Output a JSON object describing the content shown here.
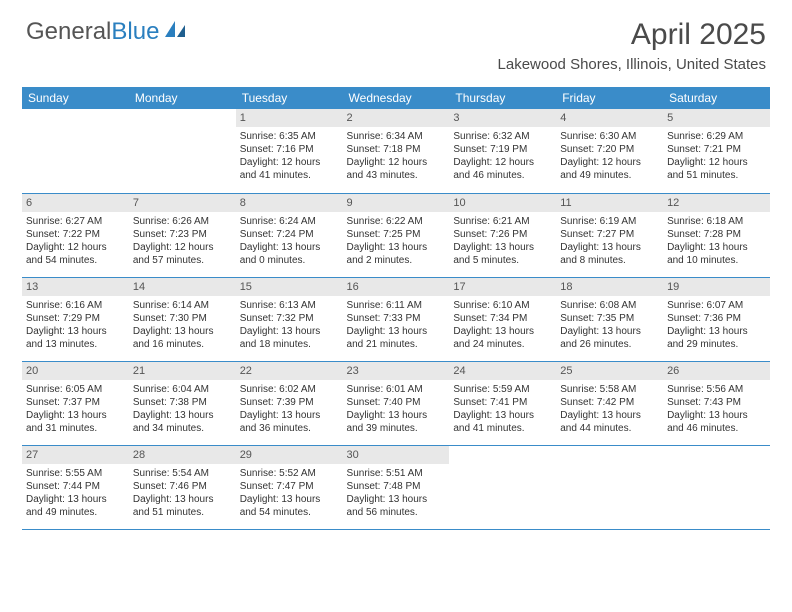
{
  "logo": {
    "part1": "General",
    "part2": "Blue"
  },
  "title": "April 2025",
  "location": "Lakewood Shores, Illinois, United States",
  "colors": {
    "header_bg": "#3a8cc9",
    "header_text": "#ffffff",
    "daynum_bg": "#e8e8e8",
    "border": "#3a8cc9",
    "logo_gray": "#555555",
    "logo_blue": "#2a7fbf"
  },
  "weekdays": [
    "Sunday",
    "Monday",
    "Tuesday",
    "Wednesday",
    "Thursday",
    "Friday",
    "Saturday"
  ],
  "weeks": [
    [
      {
        "n": "",
        "sr": "",
        "ss": "",
        "dl": ""
      },
      {
        "n": "",
        "sr": "",
        "ss": "",
        "dl": ""
      },
      {
        "n": "1",
        "sr": "Sunrise: 6:35 AM",
        "ss": "Sunset: 7:16 PM",
        "dl": "Daylight: 12 hours and 41 minutes."
      },
      {
        "n": "2",
        "sr": "Sunrise: 6:34 AM",
        "ss": "Sunset: 7:18 PM",
        "dl": "Daylight: 12 hours and 43 minutes."
      },
      {
        "n": "3",
        "sr": "Sunrise: 6:32 AM",
        "ss": "Sunset: 7:19 PM",
        "dl": "Daylight: 12 hours and 46 minutes."
      },
      {
        "n": "4",
        "sr": "Sunrise: 6:30 AM",
        "ss": "Sunset: 7:20 PM",
        "dl": "Daylight: 12 hours and 49 minutes."
      },
      {
        "n": "5",
        "sr": "Sunrise: 6:29 AM",
        "ss": "Sunset: 7:21 PM",
        "dl": "Daylight: 12 hours and 51 minutes."
      }
    ],
    [
      {
        "n": "6",
        "sr": "Sunrise: 6:27 AM",
        "ss": "Sunset: 7:22 PM",
        "dl": "Daylight: 12 hours and 54 minutes."
      },
      {
        "n": "7",
        "sr": "Sunrise: 6:26 AM",
        "ss": "Sunset: 7:23 PM",
        "dl": "Daylight: 12 hours and 57 minutes."
      },
      {
        "n": "8",
        "sr": "Sunrise: 6:24 AM",
        "ss": "Sunset: 7:24 PM",
        "dl": "Daylight: 13 hours and 0 minutes."
      },
      {
        "n": "9",
        "sr": "Sunrise: 6:22 AM",
        "ss": "Sunset: 7:25 PM",
        "dl": "Daylight: 13 hours and 2 minutes."
      },
      {
        "n": "10",
        "sr": "Sunrise: 6:21 AM",
        "ss": "Sunset: 7:26 PM",
        "dl": "Daylight: 13 hours and 5 minutes."
      },
      {
        "n": "11",
        "sr": "Sunrise: 6:19 AM",
        "ss": "Sunset: 7:27 PM",
        "dl": "Daylight: 13 hours and 8 minutes."
      },
      {
        "n": "12",
        "sr": "Sunrise: 6:18 AM",
        "ss": "Sunset: 7:28 PM",
        "dl": "Daylight: 13 hours and 10 minutes."
      }
    ],
    [
      {
        "n": "13",
        "sr": "Sunrise: 6:16 AM",
        "ss": "Sunset: 7:29 PM",
        "dl": "Daylight: 13 hours and 13 minutes."
      },
      {
        "n": "14",
        "sr": "Sunrise: 6:14 AM",
        "ss": "Sunset: 7:30 PM",
        "dl": "Daylight: 13 hours and 16 minutes."
      },
      {
        "n": "15",
        "sr": "Sunrise: 6:13 AM",
        "ss": "Sunset: 7:32 PM",
        "dl": "Daylight: 13 hours and 18 minutes."
      },
      {
        "n": "16",
        "sr": "Sunrise: 6:11 AM",
        "ss": "Sunset: 7:33 PM",
        "dl": "Daylight: 13 hours and 21 minutes."
      },
      {
        "n": "17",
        "sr": "Sunrise: 6:10 AM",
        "ss": "Sunset: 7:34 PM",
        "dl": "Daylight: 13 hours and 24 minutes."
      },
      {
        "n": "18",
        "sr": "Sunrise: 6:08 AM",
        "ss": "Sunset: 7:35 PM",
        "dl": "Daylight: 13 hours and 26 minutes."
      },
      {
        "n": "19",
        "sr": "Sunrise: 6:07 AM",
        "ss": "Sunset: 7:36 PM",
        "dl": "Daylight: 13 hours and 29 minutes."
      }
    ],
    [
      {
        "n": "20",
        "sr": "Sunrise: 6:05 AM",
        "ss": "Sunset: 7:37 PM",
        "dl": "Daylight: 13 hours and 31 minutes."
      },
      {
        "n": "21",
        "sr": "Sunrise: 6:04 AM",
        "ss": "Sunset: 7:38 PM",
        "dl": "Daylight: 13 hours and 34 minutes."
      },
      {
        "n": "22",
        "sr": "Sunrise: 6:02 AM",
        "ss": "Sunset: 7:39 PM",
        "dl": "Daylight: 13 hours and 36 minutes."
      },
      {
        "n": "23",
        "sr": "Sunrise: 6:01 AM",
        "ss": "Sunset: 7:40 PM",
        "dl": "Daylight: 13 hours and 39 minutes."
      },
      {
        "n": "24",
        "sr": "Sunrise: 5:59 AM",
        "ss": "Sunset: 7:41 PM",
        "dl": "Daylight: 13 hours and 41 minutes."
      },
      {
        "n": "25",
        "sr": "Sunrise: 5:58 AM",
        "ss": "Sunset: 7:42 PM",
        "dl": "Daylight: 13 hours and 44 minutes."
      },
      {
        "n": "26",
        "sr": "Sunrise: 5:56 AM",
        "ss": "Sunset: 7:43 PM",
        "dl": "Daylight: 13 hours and 46 minutes."
      }
    ],
    [
      {
        "n": "27",
        "sr": "Sunrise: 5:55 AM",
        "ss": "Sunset: 7:44 PM",
        "dl": "Daylight: 13 hours and 49 minutes."
      },
      {
        "n": "28",
        "sr": "Sunrise: 5:54 AM",
        "ss": "Sunset: 7:46 PM",
        "dl": "Daylight: 13 hours and 51 minutes."
      },
      {
        "n": "29",
        "sr": "Sunrise: 5:52 AM",
        "ss": "Sunset: 7:47 PM",
        "dl": "Daylight: 13 hours and 54 minutes."
      },
      {
        "n": "30",
        "sr": "Sunrise: 5:51 AM",
        "ss": "Sunset: 7:48 PM",
        "dl": "Daylight: 13 hours and 56 minutes."
      },
      {
        "n": "",
        "sr": "",
        "ss": "",
        "dl": ""
      },
      {
        "n": "",
        "sr": "",
        "ss": "",
        "dl": ""
      },
      {
        "n": "",
        "sr": "",
        "ss": "",
        "dl": ""
      }
    ]
  ]
}
